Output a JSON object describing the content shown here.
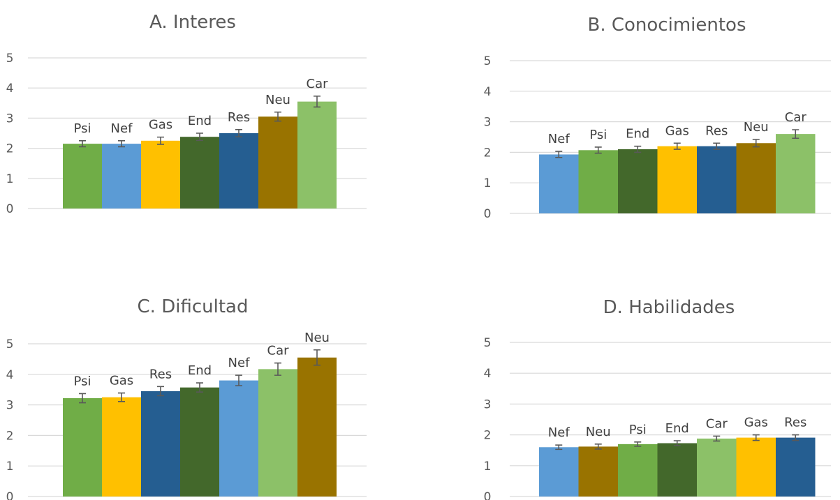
{
  "colors": {
    "Psi": "#70ad47",
    "Nef": "#5b9bd5",
    "Gas": "#ffc000",
    "End": "#43682b",
    "Res": "#255e91",
    "Neu": "#997300",
    "Car": "#8cc168"
  },
  "chart_data": [
    {
      "type": "bar",
      "title": "A. Interes",
      "ylim": [
        0,
        5
      ],
      "yticks": [
        "0",
        "1",
        "2",
        "3",
        "4",
        "5"
      ],
      "grid": true,
      "categories": [
        "Psi",
        "Nef",
        "Gas",
        "End",
        "Res",
        "Neu",
        "Car"
      ],
      "values": [
        2.15,
        2.15,
        2.25,
        2.38,
        2.5,
        3.05,
        3.55
      ],
      "errors": [
        0.1,
        0.1,
        0.12,
        0.12,
        0.12,
        0.15,
        0.18
      ]
    },
    {
      "type": "bar",
      "title": "B. Conocimientos",
      "ylim": [
        0,
        5
      ],
      "yticks": [
        "0",
        "1",
        "2",
        "3",
        "4",
        "5"
      ],
      "grid": true,
      "categories": [
        "Nef",
        "Psi",
        "End",
        "Gas",
        "Res",
        "Neu",
        "Car"
      ],
      "values": [
        1.93,
        2.07,
        2.1,
        2.2,
        2.2,
        2.3,
        2.6
      ],
      "errors": [
        0.1,
        0.1,
        0.1,
        0.1,
        0.1,
        0.12,
        0.14
      ]
    },
    {
      "type": "bar",
      "title": "C. Dificultad",
      "ylim": [
        0,
        5
      ],
      "yticks": [
        "0",
        "1",
        "2",
        "3",
        "4",
        "5"
      ],
      "grid": true,
      "categories": [
        "Psi",
        "Gas",
        "Res",
        "End",
        "Nef",
        "Car",
        "Neu"
      ],
      "values": [
        3.22,
        3.25,
        3.45,
        3.57,
        3.8,
        4.17,
        4.55
      ],
      "errors": [
        0.15,
        0.14,
        0.15,
        0.15,
        0.17,
        0.2,
        0.25
      ]
    },
    {
      "type": "bar",
      "title": "D. Habilidades",
      "ylim": [
        0,
        5
      ],
      "yticks": [
        "0",
        "1",
        "2",
        "3",
        "4",
        "5"
      ],
      "grid": true,
      "categories": [
        "Nef",
        "Neu",
        "Psi",
        "End",
        "Car",
        "Gas",
        "Res"
      ],
      "values": [
        1.6,
        1.62,
        1.7,
        1.73,
        1.88,
        1.91,
        1.91
      ],
      "errors": [
        0.07,
        0.08,
        0.07,
        0.08,
        0.08,
        0.09,
        0.09
      ]
    }
  ]
}
